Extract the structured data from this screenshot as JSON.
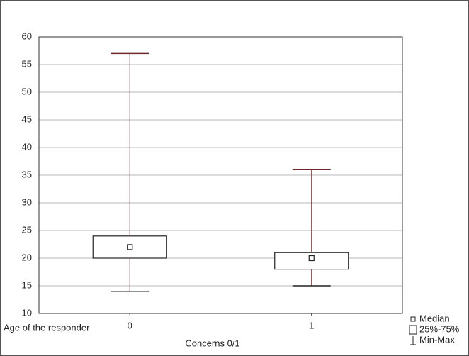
{
  "chart_data": {
    "type": "box",
    "x_label": "Concerns 0/1",
    "y_label": "Age of the responder",
    "categories": [
      "0",
      "1"
    ],
    "boxes": [
      {
        "min": 14,
        "q1": 20,
        "median": 22,
        "q3": 24,
        "max": 57
      },
      {
        "min": 15,
        "q1": 18,
        "median": 20,
        "q3": 21,
        "max": 36
      }
    ],
    "box_color": "#222222",
    "whisker_color": "#6e2a2a",
    "ylim": [
      10,
      60
    ],
    "yticks": [
      10,
      15,
      20,
      25,
      30,
      35,
      40,
      45,
      50,
      55,
      60
    ],
    "grid": true,
    "legend": [
      "Median",
      "25%-75%",
      "Min-Max"
    ],
    "legend_position": "bottom-right"
  }
}
